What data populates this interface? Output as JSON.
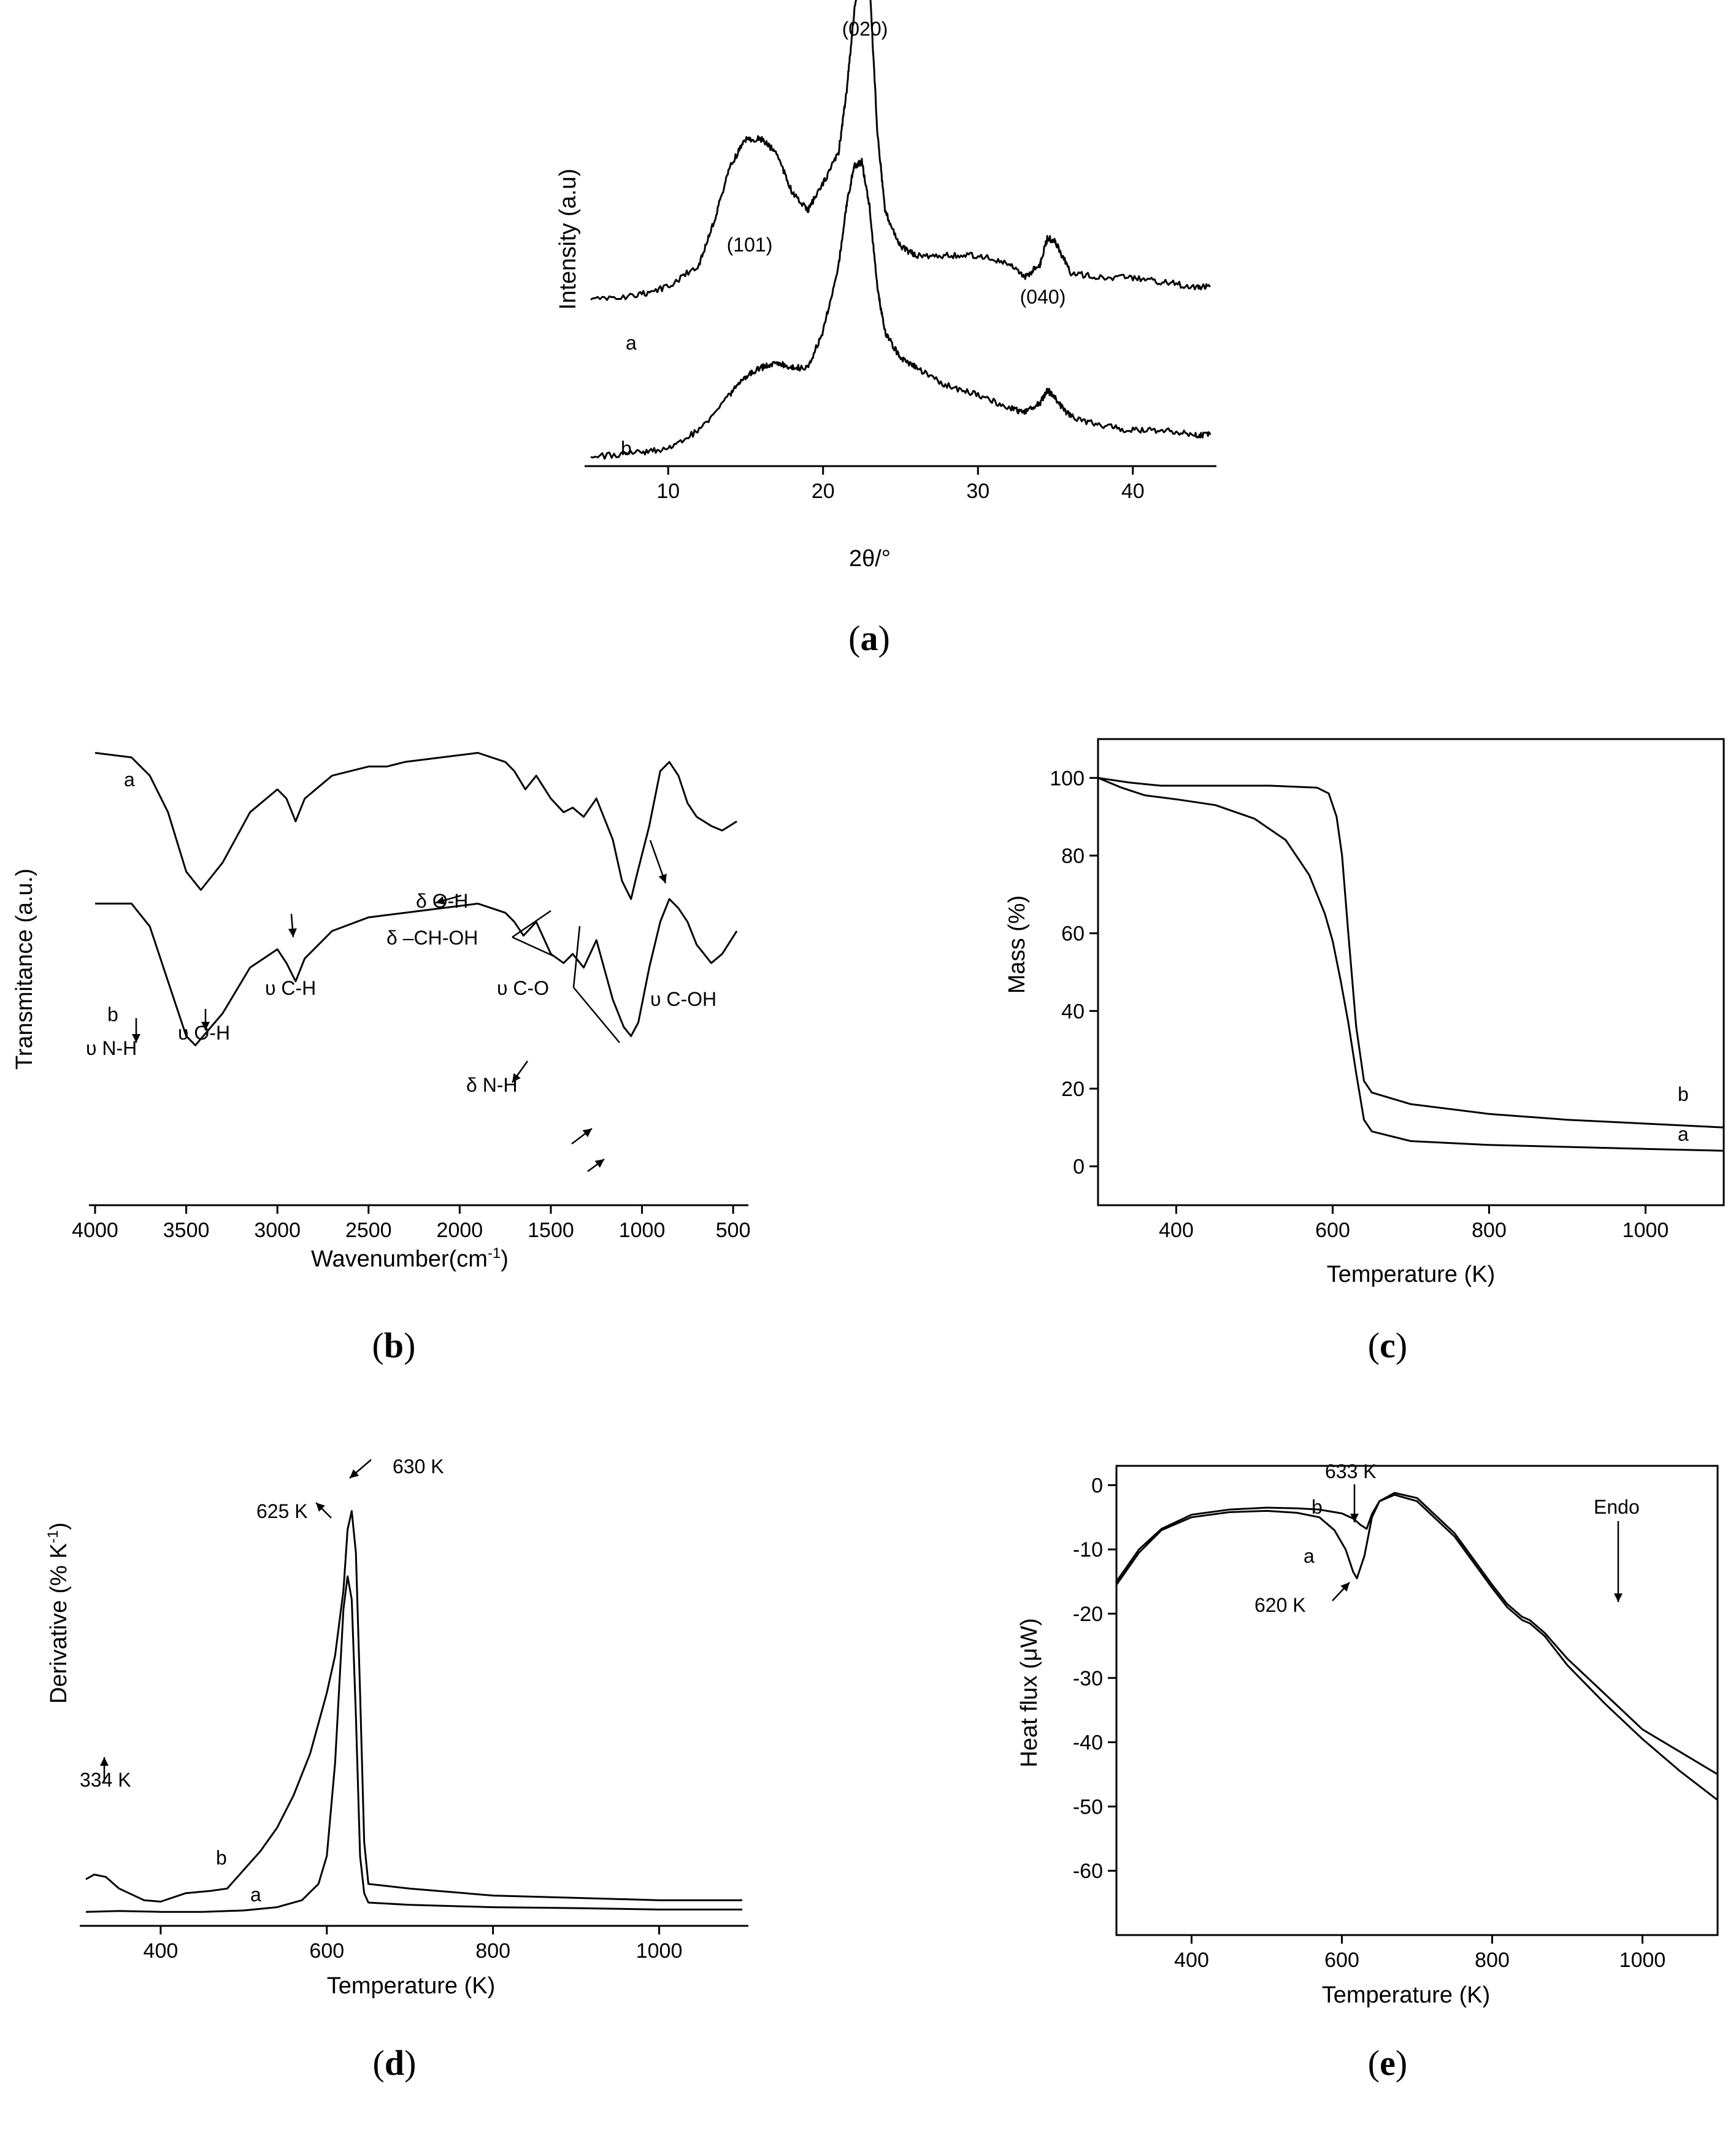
{
  "chart_data": [
    {
      "id": "a",
      "type": "line",
      "caption": "a",
      "xlabel": "2θ/°",
      "ylabel": "Intensity (a.u)",
      "xlim": [
        5,
        45
      ],
      "ylim": [
        0,
        100
      ],
      "xticks": [
        10,
        20,
        30,
        40
      ],
      "yticks": [],
      "series": [
        {
          "name": "a",
          "label": "a",
          "x": [
            5,
            8,
            10,
            12,
            13,
            14,
            15,
            16,
            17,
            18,
            19,
            20,
            21,
            21.5,
            22,
            22.5,
            23,
            23.5,
            24,
            25,
            26,
            28,
            30,
            32,
            33,
            34,
            34.5,
            35,
            36,
            38,
            40,
            42,
            44,
            45
          ],
          "y": [
            22,
            23,
            25,
            30,
            40,
            52,
            58,
            58,
            55,
            46,
            42,
            48,
            55,
            68,
            86,
            100,
            93,
            60,
            42,
            34,
            32,
            32,
            32,
            30,
            27,
            30,
            36,
            35,
            28,
            27,
            27,
            26,
            25,
            25
          ]
        },
        {
          "name": "b",
          "label": "b",
          "x": [
            5,
            8,
            10,
            12,
            14,
            15,
            16,
            17,
            18,
            19,
            20,
            21,
            21.5,
            22,
            22.5,
            23,
            23.5,
            24,
            25,
            26,
            28,
            30,
            32,
            33,
            34,
            34.5,
            35,
            36,
            38,
            40,
            42,
            44,
            45
          ],
          "y": [
            2,
            3,
            4,
            8,
            16,
            20,
            22,
            23,
            22,
            22,
            30,
            45,
            58,
            67,
            68,
            58,
            40,
            30,
            24,
            22,
            18,
            16,
            13,
            12,
            14,
            17,
            15,
            11,
            9,
            8,
            8,
            7,
            7
          ]
        }
      ],
      "annotations": [
        {
          "text": "(020)",
          "x": 22.5,
          "y": 108
        },
        {
          "text": "(101)",
          "x": 15.5,
          "y": 68
        },
        {
          "text": "(040)",
          "x": 34.5,
          "y": 44
        }
      ]
    },
    {
      "id": "b",
      "type": "line",
      "caption": "b",
      "xlabel": "Wavenumber(cm⁻¹)",
      "ylabel": "Transmitance (a.u.)",
      "xlim": [
        4000,
        450
      ],
      "ylim": [
        0,
        100
      ],
      "xticks": [
        4000,
        3500,
        3000,
        2500,
        2000,
        1500,
        1000,
        500
      ],
      "yticks": [],
      "series": [
        {
          "name": "a",
          "label": "a",
          "x": [
            4000,
            3800,
            3700,
            3600,
            3500,
            3420,
            3300,
            3150,
            3000,
            2950,
            2900,
            2850,
            2700,
            2500,
            2400,
            2300,
            2100,
            1900,
            1750,
            1700,
            1640,
            1580,
            1500,
            1430,
            1380,
            1320,
            1250,
            1160,
            1110,
            1060,
            1030,
            960,
            900,
            850,
            800,
            750,
            700,
            620,
            560,
            480
          ],
          "y": [
            99,
            98,
            94,
            86,
            73,
            69,
            75,
            86,
            91,
            89,
            84,
            89,
            94,
            96,
            96,
            97,
            98,
            99,
            97,
            95,
            91,
            94,
            89,
            86,
            87,
            85,
            89,
            80,
            71,
            67,
            72,
            83,
            95,
            97,
            94,
            88,
            85,
            83,
            82,
            84
          ]
        },
        {
          "name": "b",
          "label": "b",
          "x": [
            4000,
            3800,
            3700,
            3600,
            3500,
            3450,
            3300,
            3150,
            3000,
            2950,
            2900,
            2850,
            2700,
            2500,
            2300,
            2100,
            1900,
            1750,
            1700,
            1650,
            1580,
            1500,
            1430,
            1380,
            1320,
            1250,
            1160,
            1100,
            1060,
            1020,
            960,
            900,
            850,
            800,
            750,
            700,
            620,
            560,
            480
          ],
          "y": [
            66,
            66,
            61,
            49,
            37,
            35,
            42,
            52,
            56,
            53,
            49,
            54,
            60,
            63,
            64,
            65,
            66,
            64,
            62,
            59,
            62,
            55,
            53,
            55,
            52,
            58,
            45,
            39,
            37,
            40,
            52,
            62,
            67,
            65,
            62,
            57,
            53,
            55,
            60
          ]
        }
      ],
      "annotations": [
        {
          "text": "δ O-H",
          "x": 1660,
          "y": 91
        },
        {
          "text": "δ –CH-OH",
          "x": 1450,
          "y": 86
        },
        {
          "text": "υ C-H",
          "x": 2900,
          "y": 80
        },
        {
          "text": "υ C-O",
          "x": 1150,
          "y": 73
        },
        {
          "text": "υ C-OH",
          "x": 820,
          "y": 80
        },
        {
          "text": "υ O-H",
          "x": 3400,
          "y": 66
        },
        {
          "text": "υ N-H",
          "x": 3780,
          "y": 60
        },
        {
          "text": "δ N-H",
          "x": 1590,
          "y": 54
        }
      ]
    },
    {
      "id": "c",
      "type": "line",
      "caption": "c",
      "xlabel": "Temperature (K)",
      "ylabel": "Mass (%)",
      "xlim": [
        300,
        1100
      ],
      "ylim": [
        -10,
        110
      ],
      "xticks": [
        400,
        600,
        800,
        1000
      ],
      "yticks": [
        0,
        20,
        40,
        60,
        80,
        100
      ],
      "series": [
        {
          "name": "a",
          "label": "a",
          "x": [
            300,
            330,
            360,
            400,
            450,
            500,
            540,
            570,
            590,
            600,
            610,
            620,
            630,
            640,
            650,
            700,
            800,
            900,
            1000,
            1100
          ],
          "y": [
            100,
            97.5,
            95.5,
            94.5,
            93,
            89.5,
            84,
            75,
            65,
            58,
            48,
            37,
            24,
            12,
            9,
            6.5,
            5.5,
            5,
            4.5,
            4
          ]
        },
        {
          "name": "b",
          "label": "b",
          "x": [
            300,
            340,
            380,
            450,
            520,
            580,
            595,
            605,
            612,
            620,
            630,
            640,
            650,
            700,
            800,
            900,
            1000,
            1100
          ],
          "y": [
            100,
            98.8,
            98,
            98,
            98,
            97.5,
            96,
            90,
            80,
            60,
            36,
            22,
            19,
            16,
            13.5,
            12,
            11,
            10
          ]
        }
      ],
      "annotations": []
    },
    {
      "id": "d",
      "type": "line",
      "caption": "d",
      "xlabel": "Temperature (K)",
      "ylabel": "Derivative (% K⁻¹)",
      "xlim": [
        310,
        1100
      ],
      "ylim": [
        0,
        100
      ],
      "xticks": [
        400,
        600,
        800,
        1000
      ],
      "yticks": [],
      "series": [
        {
          "name": "a",
          "label": "a",
          "x": [
            310,
            350,
            400,
            450,
            500,
            540,
            570,
            590,
            600,
            610,
            620,
            625,
            630,
            635,
            640,
            645,
            650,
            700,
            800,
            900,
            1000,
            1100
          ],
          "y": [
            3,
            3.2,
            3,
            3,
            3.3,
            4,
            5.5,
            9,
            15,
            35,
            68,
            75,
            70,
            45,
            15,
            7,
            5,
            4.5,
            4,
            3.8,
            3.5,
            3.5
          ]
        },
        {
          "name": "b",
          "label": "b",
          "x": [
            310,
            320,
            334,
            350,
            380,
            400,
            430,
            460,
            480,
            500,
            520,
            540,
            560,
            580,
            600,
            610,
            620,
            625,
            630,
            635,
            640,
            645,
            650,
            700,
            800,
            900,
            1000,
            1100
          ],
          "y": [
            10,
            11,
            10.5,
            8,
            5.5,
            5.2,
            7,
            7.5,
            8,
            12,
            16,
            21,
            28,
            37,
            50,
            58,
            72,
            85,
            89,
            80,
            50,
            18,
            9,
            8,
            6.5,
            6,
            5.5,
            5.5
          ]
        }
      ],
      "annotations": [
        {
          "text": "630 K",
          "x": 630,
          "y": 99
        },
        {
          "text": "625 K",
          "x": 625,
          "y": 90
        },
        {
          "text": "334 K",
          "x": 334,
          "y": 24
        }
      ]
    },
    {
      "id": "e",
      "type": "line",
      "caption": "e",
      "xlabel": "Temperature (K)",
      "ylabel": "Heat flux (μW)",
      "xlim": [
        300,
        1100
      ],
      "ylim": [
        -70,
        3
      ],
      "xticks": [
        400,
        600,
        800,
        1000
      ],
      "yticks": [
        0,
        -10,
        -20,
        -30,
        -40,
        -50,
        -60
      ],
      "series": [
        {
          "name": "a",
          "label": "a",
          "x": [
            300,
            330,
            360,
            400,
            450,
            500,
            540,
            570,
            590,
            605,
            615,
            620,
            630,
            640,
            650,
            670,
            700,
            750,
            800,
            820,
            840,
            850,
            870,
            900,
            950,
            1000,
            1050,
            1100
          ],
          "y": [
            -15.5,
            -10.5,
            -7,
            -5,
            -4.2,
            -4,
            -4.3,
            -5,
            -7,
            -10,
            -13.5,
            -14.5,
            -11,
            -5,
            -2.5,
            -1.5,
            -2.5,
            -8,
            -16,
            -19,
            -21,
            -21.5,
            -23.5,
            -28,
            -34,
            -39.5,
            -44.5,
            -49
          ]
        },
        {
          "name": "b",
          "label": "b",
          "x": [
            300,
            330,
            360,
            400,
            450,
            500,
            540,
            570,
            600,
            615,
            625,
            633,
            640,
            650,
            670,
            700,
            750,
            800,
            820,
            840,
            850,
            870,
            900,
            950,
            1000,
            1050,
            1100
          ],
          "y": [
            -15,
            -10,
            -6.8,
            -4.6,
            -3.8,
            -3.5,
            -3.6,
            -3.8,
            -4.4,
            -5.2,
            -6.2,
            -6.8,
            -4.5,
            -2.5,
            -1.2,
            -2,
            -7.5,
            -15.5,
            -18.5,
            -20.5,
            -21,
            -23,
            -27,
            -32.5,
            -38,
            -41.5,
            -45
          ]
        }
      ],
      "annotations": [
        {
          "text": "633 K",
          "x": 633,
          "y": 2
        },
        {
          "text": "620 K",
          "x": 620,
          "y": -22
        },
        {
          "text": "Endo",
          "x": 985,
          "y": -1
        }
      ]
    }
  ]
}
